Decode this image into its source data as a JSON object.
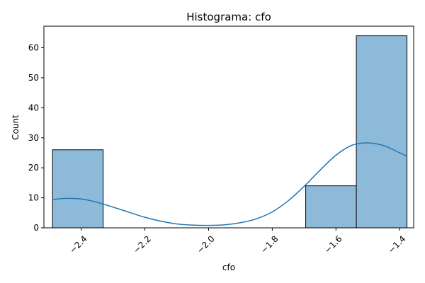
{
  "chart_data": {
    "type": "bar",
    "title": "Histograma: cfo",
    "xlabel": "cfo",
    "ylabel": "Count",
    "xlim": [
      -2.517,
      -1.356
    ],
    "ylim": [
      0,
      67.2
    ],
    "x_ticks": [
      {
        "value": -2.4,
        "label": "−2.4"
      },
      {
        "value": -2.2,
        "label": "−2.2"
      },
      {
        "value": -2.0,
        "label": "−2.0"
      },
      {
        "value": -1.8,
        "label": "−1.8"
      },
      {
        "value": -1.6,
        "label": "−1.6"
      },
      {
        "value": -1.4,
        "label": "−1.4"
      }
    ],
    "y_ticks": [
      {
        "value": 0,
        "label": "0"
      },
      {
        "value": 10,
        "label": "10"
      },
      {
        "value": 20,
        "label": "20"
      },
      {
        "value": 30,
        "label": "30"
      },
      {
        "value": 40,
        "label": "40"
      },
      {
        "value": 50,
        "label": "50"
      },
      {
        "value": 60,
        "label": "60"
      }
    ],
    "bins": [
      {
        "start": -2.49,
        "end": -2.331,
        "count": 26
      },
      {
        "start": -2.331,
        "end": -2.172,
        "count": 0
      },
      {
        "start": -2.172,
        "end": -2.013,
        "count": 0
      },
      {
        "start": -2.013,
        "end": -1.854,
        "count": 0
      },
      {
        "start": -1.854,
        "end": -1.695,
        "count": 0
      },
      {
        "start": -1.695,
        "end": -1.536,
        "count": 14
      },
      {
        "start": -1.536,
        "end": -1.377,
        "count": 64
      }
    ],
    "kde": {
      "x": [
        -2.49,
        -2.45,
        -2.4,
        -2.35,
        -2.3,
        -2.25,
        -2.2,
        -2.15,
        -2.1,
        -2.05,
        -2.0,
        -1.95,
        -1.9,
        -1.85,
        -1.8,
        -1.75,
        -1.7,
        -1.65,
        -1.6,
        -1.55,
        -1.5,
        -1.45,
        -1.4,
        -1.377
      ],
      "y": [
        9.4,
        9.8,
        9.6,
        8.5,
        6.9,
        5.2,
        3.5,
        2.2,
        1.3,
        0.9,
        0.8,
        1.0,
        1.7,
        3.0,
        5.3,
        9.0,
        13.8,
        19.2,
        24.2,
        27.5,
        28.3,
        27.4,
        25.0,
        23.9
      ]
    },
    "colors": {
      "bar_fill": "#8ebada",
      "bar_edge": "#000000",
      "kde_line": "#1f77b4"
    },
    "grid": false,
    "legend": "none"
  }
}
